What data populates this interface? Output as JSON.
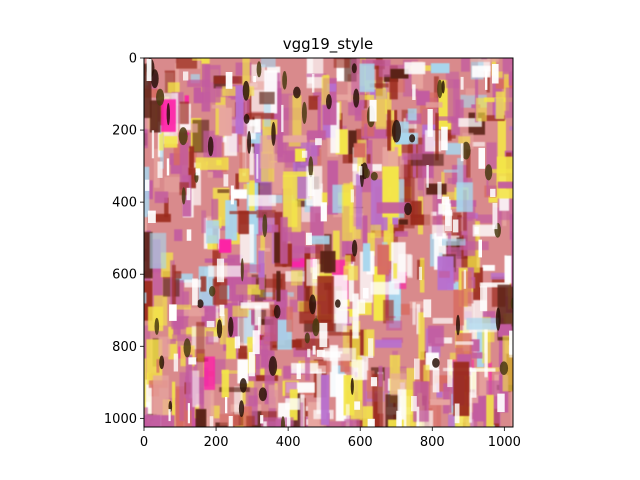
{
  "figure": {
    "title": "vgg19_style",
    "image_content": "abstract painted texture: vertical brush-stroke rectangles in magenta, yellow, deep red, brown, white, pale blue",
    "palette": [
      "#c35ba0",
      "#f4e64a",
      "#9b2a1e",
      "#5a2214",
      "#ffffff",
      "#a9d7ee",
      "#e8a6a0",
      "#ff1aa8",
      "#d86c62",
      "#b86fd0"
    ]
  },
  "axes": {
    "x_ticks": [
      "0",
      "200",
      "400",
      "600",
      "800",
      "1000"
    ],
    "y_ticks": [
      "0",
      "200",
      "400",
      "600",
      "800",
      "1000"
    ],
    "x_range": [
      0,
      1024
    ],
    "y_range": [
      0,
      1024
    ]
  }
}
